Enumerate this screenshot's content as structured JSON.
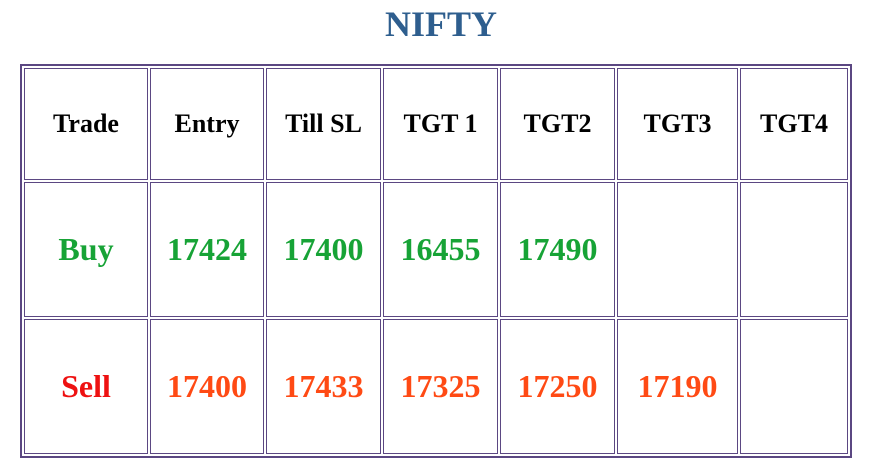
{
  "header": {
    "title": "NIFTY"
  },
  "table": {
    "columns": [
      "Trade",
      "Entry",
      "Till SL",
      "TGT 1",
      "TGT2",
      "TGT3",
      "TGT4"
    ],
    "rows": [
      [
        "Buy",
        17424,
        17400,
        16455,
        17490,
        null,
        null
      ],
      [
        "Sell",
        17400,
        17433,
        17325,
        17250,
        17190,
        null
      ]
    ]
  }
}
